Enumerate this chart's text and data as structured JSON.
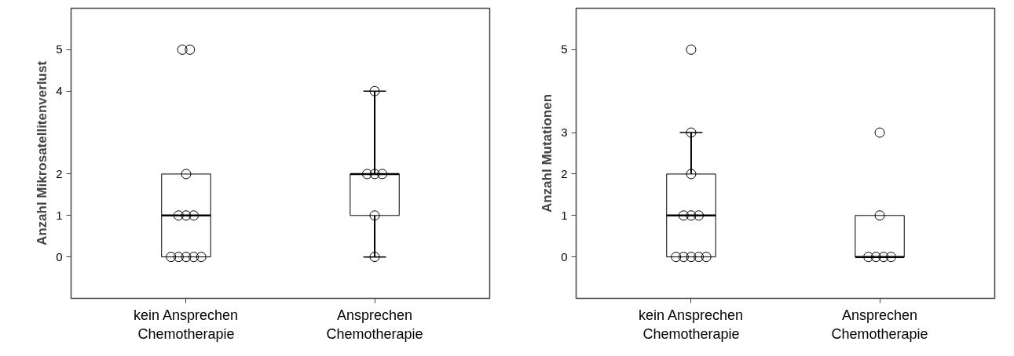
{
  "chart_data": [
    {
      "type": "box",
      "ylabel": "Anzahl Mikrosatellitenverlust",
      "categories": [
        "kein Ansprechen\nChemotherapie",
        "Ansprechen\nChemotherapie"
      ],
      "boxes": [
        {
          "low": 0,
          "q1": 0,
          "median": 1,
          "q3": 2,
          "high": 2
        },
        {
          "low": 0,
          "q1": 1,
          "median": 2,
          "q3": 2,
          "high": 4
        }
      ],
      "ylim": [
        -1,
        6
      ],
      "yticks": [
        0,
        1,
        2,
        4,
        5
      ],
      "grid": false,
      "series": [
        {
          "type": "scatter",
          "color": "#000000",
          "marker": "circle",
          "x": [
            "kein Ansprechen\nChemotherapie",
            "kein Ansprechen\nChemotherapie",
            "kein Ansprechen\nChemotherapie",
            "kein Ansprechen\nChemotherapie",
            "kein Ansprechen\nChemotherapie",
            "kein Ansprechen\nChemotherapie",
            "kein Ansprechen\nChemotherapie",
            "kein Ansprechen\nChemotherapie",
            "kein Ansprechen\nChemotherapie",
            "kein Ansprechen\nChemotherapie",
            "kein Ansprechen\nChemotherapie",
            "Ansprechen\nChemotherapie",
            "Ansprechen\nChemotherapie",
            "Ansprechen\nChemotherapie",
            "Ansprechen\nChemotherapie",
            "Ansprechen\nChemotherapie",
            "Ansprechen\nChemotherapie"
          ],
          "values": [
            5,
            5,
            2,
            1,
            1,
            1,
            0,
            0,
            0,
            0,
            0,
            4,
            2,
            2,
            2,
            1,
            0
          ]
        }
      ]
    },
    {
      "type": "box",
      "ylabel": "Anzahl Mutationen",
      "categories": [
        "kein Ansprechen\nChemotherapie",
        "Ansprechen\nChemotherapie"
      ],
      "boxes": [
        {
          "low": 0,
          "q1": 0,
          "median": 1,
          "q3": 2,
          "high": 3
        },
        {
          "low": 0,
          "q1": 0,
          "median": 0,
          "q3": 1,
          "high": 1
        }
      ],
      "ylim": [
        -1,
        6
      ],
      "yticks": [
        0,
        1,
        2,
        3,
        5
      ],
      "grid": false,
      "series": [
        {
          "type": "scatter",
          "color": "#000000",
          "marker": "circle",
          "x": [
            "kein Ansprechen\nChemotherapie",
            "kein Ansprechen\nChemotherapie",
            "kein Ansprechen\nChemotherapie",
            "kein Ansprechen\nChemotherapie",
            "kein Ansprechen\nChemotherapie",
            "kein Ansprechen\nChemotherapie",
            "kein Ansprechen\nChemotherapie",
            "kein Ansprechen\nChemotherapie",
            "kein Ansprechen\nChemotherapie",
            "kein Ansprechen\nChemotherapie",
            "kein Ansprechen\nChemotherapie",
            "Ansprechen\nChemotherapie",
            "Ansprechen\nChemotherapie",
            "Ansprechen\nChemotherapie",
            "Ansprechen\nChemotherapie",
            "Ansprechen\nChemotherapie",
            "Ansprechen\nChemotherapie"
          ],
          "values": [
            5,
            3,
            2,
            1,
            1,
            1,
            0,
            0,
            0,
            0,
            0,
            3,
            1,
            0,
            0,
            0,
            0
          ]
        }
      ]
    }
  ]
}
